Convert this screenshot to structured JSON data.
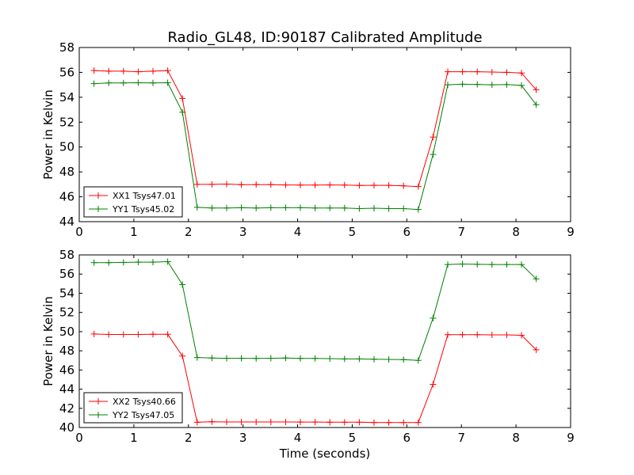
{
  "figure": {
    "title": "Radio_GL48, ID:90187 Calibrated Amplitude",
    "xlabel": "Time (seconds)"
  },
  "chart_data": [
    {
      "type": "line",
      "title": "Radio_GL48, ID:90187 Calibrated Amplitude",
      "xlabel": "",
      "ylabel": "Power in Kelvin",
      "xlim": [
        0,
        9
      ],
      "ylim": [
        44,
        58
      ],
      "xticks": [
        "0",
        "1",
        "2",
        "3",
        "4",
        "5",
        "6",
        "7",
        "8",
        "9"
      ],
      "yticks": [
        "44",
        "46",
        "48",
        "50",
        "52",
        "54",
        "56",
        "58"
      ],
      "grid": false,
      "legend_position": "lower-left",
      "x": [
        0.27,
        0.54,
        0.81,
        1.08,
        1.35,
        1.62,
        1.89,
        2.16,
        2.43,
        2.7,
        2.97,
        3.24,
        3.51,
        3.78,
        4.05,
        4.32,
        4.59,
        4.86,
        5.13,
        5.4,
        5.67,
        5.94,
        6.21,
        6.48,
        6.75,
        7.02,
        7.29,
        7.56,
        7.83,
        8.1,
        8.37
      ],
      "series": [
        {
          "name": "XX1 Tsys47.01",
          "color": "#ff0000",
          "values": [
            56.15,
            56.1,
            56.1,
            56.05,
            56.1,
            56.15,
            53.9,
            47.0,
            47.0,
            47.02,
            46.97,
            46.98,
            46.98,
            46.95,
            46.94,
            46.94,
            46.95,
            46.94,
            46.91,
            46.92,
            46.92,
            46.88,
            46.82,
            50.8,
            56.05,
            56.05,
            56.05,
            56.03,
            56.0,
            55.95,
            54.6
          ]
        },
        {
          "name": "YY1 Tsys45.02",
          "color": "#008000",
          "values": [
            55.1,
            55.15,
            55.15,
            55.17,
            55.15,
            55.17,
            52.8,
            45.15,
            45.1,
            45.1,
            45.12,
            45.1,
            45.12,
            45.12,
            45.12,
            45.1,
            45.1,
            45.1,
            45.05,
            45.08,
            45.05,
            45.05,
            44.98,
            49.4,
            55.0,
            55.05,
            55.03,
            55.0,
            55.02,
            54.95,
            53.4
          ]
        }
      ]
    },
    {
      "type": "line",
      "title": "",
      "xlabel": "Time (seconds)",
      "ylabel": "Power in Kelvin",
      "xlim": [
        0,
        9
      ],
      "ylim": [
        40,
        58
      ],
      "xticks": [
        "0",
        "1",
        "2",
        "3",
        "4",
        "5",
        "6",
        "7",
        "8",
        "9"
      ],
      "yticks": [
        "40",
        "42",
        "44",
        "46",
        "48",
        "50",
        "52",
        "54",
        "56",
        "58"
      ],
      "grid": false,
      "legend_position": "lower-left",
      "x": [
        0.27,
        0.54,
        0.81,
        1.08,
        1.35,
        1.62,
        1.89,
        2.16,
        2.43,
        2.7,
        2.97,
        3.24,
        3.51,
        3.78,
        4.05,
        4.32,
        4.59,
        4.86,
        5.13,
        5.4,
        5.67,
        5.94,
        6.21,
        6.48,
        6.75,
        7.02,
        7.29,
        7.56,
        7.83,
        8.1,
        8.37
      ],
      "series": [
        {
          "name": "XX2 Tsys40.66",
          "color": "#ff0000",
          "values": [
            49.75,
            49.7,
            49.7,
            49.7,
            49.72,
            49.72,
            47.45,
            40.55,
            40.6,
            40.58,
            40.58,
            40.58,
            40.58,
            40.58,
            40.57,
            40.57,
            40.55,
            40.55,
            40.55,
            40.52,
            40.52,
            40.52,
            40.52,
            44.5,
            49.68,
            49.68,
            49.68,
            49.66,
            49.66,
            49.62,
            48.1
          ]
        },
        {
          "name": "YY2 Tsys47.05",
          "color": "#008000",
          "values": [
            57.2,
            57.2,
            57.22,
            57.25,
            57.25,
            57.3,
            54.9,
            47.3,
            47.25,
            47.22,
            47.22,
            47.2,
            47.22,
            47.25,
            47.2,
            47.2,
            47.18,
            47.15,
            47.15,
            47.12,
            47.1,
            47.08,
            47.0,
            51.4,
            57.0,
            57.05,
            57.02,
            57.0,
            57.0,
            57.0,
            55.5
          ]
        }
      ]
    }
  ]
}
